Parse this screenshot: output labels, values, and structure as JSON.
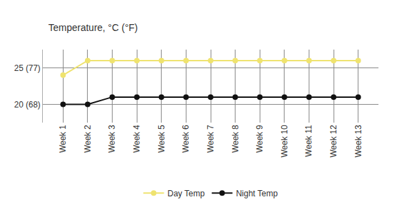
{
  "chart_data": {
    "type": "line",
    "title": "Temperature, °C (°F)",
    "categories": [
      "Week 1",
      "Week 2",
      "Week 3",
      "Week 4",
      "Week 5",
      "Week 6",
      "Week 7",
      "Week 8",
      "Week 9",
      "Week 10",
      "Week 11",
      "Week 12",
      "Week 13"
    ],
    "series": [
      {
        "name": "Day Temp",
        "color": "#efe36f",
        "values": [
          24,
          26,
          26,
          26,
          26,
          26,
          26,
          26,
          26,
          26,
          26,
          26,
          26
        ]
      },
      {
        "name": "Night Temp",
        "color": "#111111",
        "values": [
          20,
          20,
          21,
          21,
          21,
          21,
          21,
          21,
          21,
          21,
          21,
          21,
          21
        ]
      }
    ],
    "ylim": [
      17.5,
      27.5
    ],
    "yticks": [
      {
        "value": 20,
        "label": "20 (68)"
      },
      {
        "value": 25,
        "label": "25 (77)"
      }
    ],
    "grid": true,
    "legend": "bottom",
    "marker": "circle",
    "line_style": "solid"
  }
}
